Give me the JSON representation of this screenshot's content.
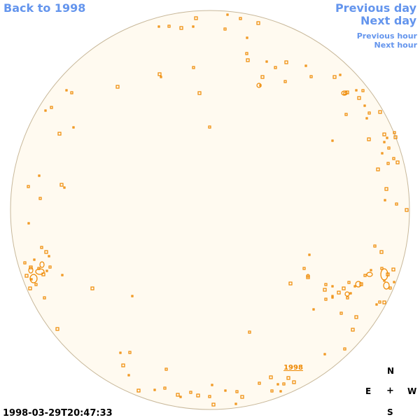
{
  "nav": {
    "back_label": "Back to 1998",
    "prev_day": "Previous day",
    "next_day": "Next day",
    "prev_hour": "Previous hour",
    "next_hour": "Next hour"
  },
  "timestamp": "1998-03-29T20:47:33",
  "disk_label": "1998",
  "compass": {
    "north": "N",
    "south": "S",
    "east": "E",
    "west": "W",
    "center": "+"
  },
  "colors": {
    "disk_fill": "#fffaf0",
    "disk_stroke": "#c8b89a",
    "contour": "#ee8800",
    "link": "#6495ed"
  }
}
